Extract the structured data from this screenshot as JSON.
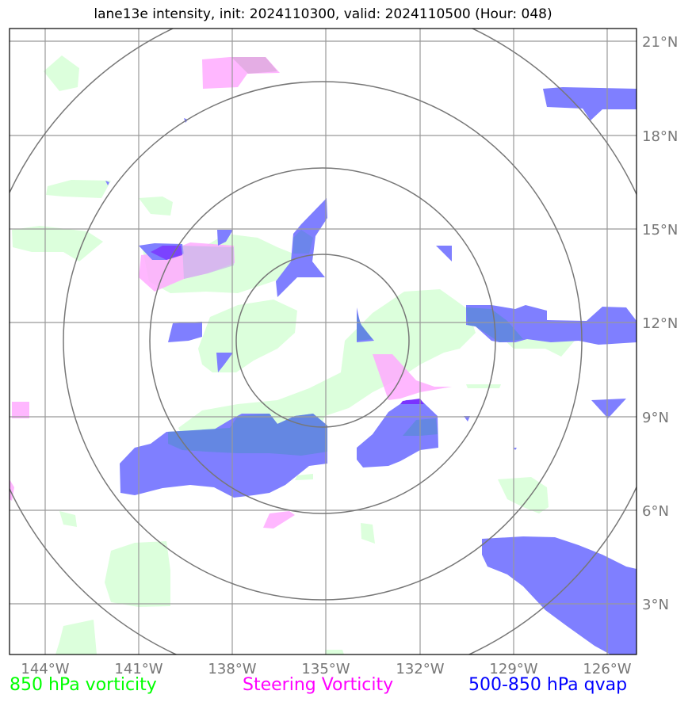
{
  "title": "lane13e intensity, init: 2024110300, valid: 2024110500 (Hour: 048)",
  "map": {
    "lon_labels": [
      "144°W",
      "141°W",
      "138°W",
      "135°W",
      "132°W",
      "129°W",
      "126°W"
    ],
    "lat_labels": [
      "21°N",
      "18°N",
      "15°N",
      "12°N",
      "9°N",
      "6°N",
      "3°N"
    ],
    "center": "135°W 11.5°N",
    "range_rings_count": 4
  },
  "legend": {
    "vorticity": "850 hPa vorticity",
    "steering": "Steering Vorticity",
    "qvap": "500-850 hPa qvap"
  },
  "colors": {
    "vorticity": "#00ff00",
    "steering": "#ff00ff",
    "qvap": "#0000ff",
    "vorticity_fill": "#dcffdc",
    "steering_fill": "#ffaaff",
    "qvap_fill": "#7f7fff"
  }
}
